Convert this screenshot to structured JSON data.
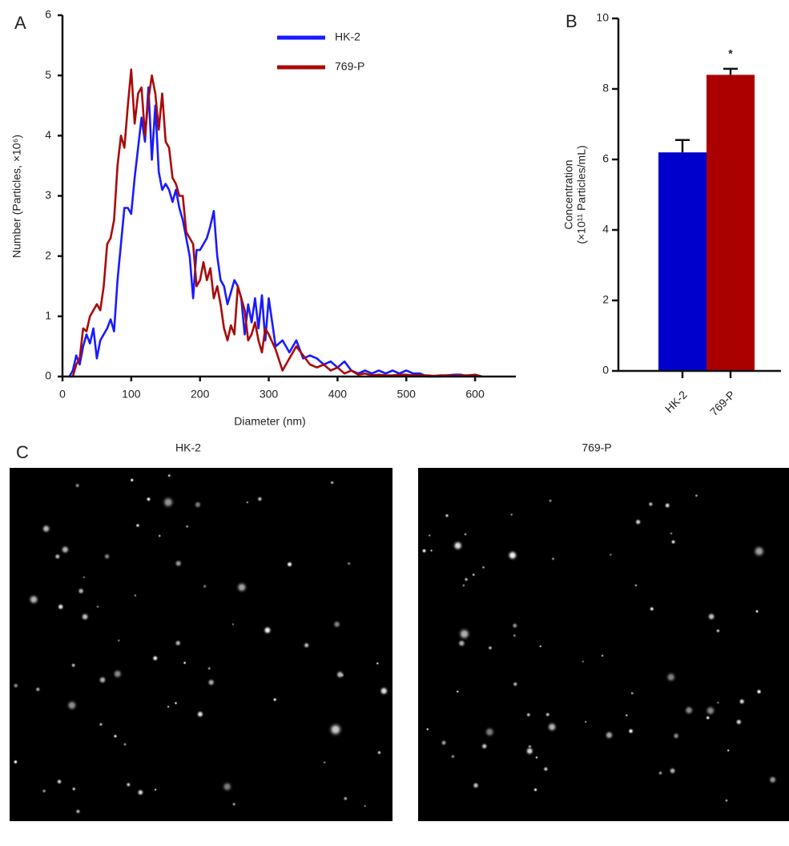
{
  "panel_labels": [
    "A",
    "B",
    "C"
  ],
  "images": [
    {
      "title": "HK-2"
    },
    {
      "title": "769-P"
    }
  ],
  "chart_data": [
    {
      "type": "line",
      "xlabel": "Diameter (nm)",
      "ylabel": "Number (Particles, ×10⁶)",
      "xlim": [
        0,
        650
      ],
      "xticks": [
        0,
        100,
        200,
        300,
        400,
        500,
        600
      ],
      "ylim": [
        0,
        6
      ],
      "yticks": [
        0,
        1,
        2,
        3,
        4,
        5,
        6
      ],
      "legend": "top",
      "x": [
        10,
        15,
        20,
        25,
        30,
        35,
        40,
        45,
        50,
        55,
        60,
        65,
        70,
        75,
        80,
        85,
        90,
        95,
        100,
        105,
        110,
        115,
        120,
        125,
        130,
        135,
        140,
        145,
        150,
        155,
        160,
        165,
        170,
        175,
        180,
        185,
        190,
        195,
        200,
        205,
        210,
        215,
        220,
        225,
        230,
        235,
        240,
        245,
        250,
        255,
        260,
        265,
        270,
        275,
        280,
        285,
        290,
        295,
        300,
        310,
        320,
        330,
        340,
        350,
        360,
        370,
        380,
        390,
        400,
        410,
        420,
        430,
        440,
        450,
        460,
        470,
        480,
        490,
        500,
        510,
        520,
        530,
        540,
        550,
        560,
        570,
        580,
        590,
        600,
        610
      ],
      "series": [
        {
          "name": "HK-2",
          "color": "#1a1aff",
          "values": [
            0,
            0.1,
            0.35,
            0.2,
            0.5,
            0.7,
            0.55,
            0.8,
            0.3,
            0.6,
            0.7,
            0.8,
            0.95,
            0.75,
            1.6,
            2.2,
            2.8,
            2.8,
            2.7,
            3.3,
            3.8,
            4.3,
            3.9,
            4.8,
            3.6,
            4.5,
            3.4,
            3.1,
            3.2,
            3.1,
            2.9,
            3.1,
            2.8,
            2.6,
            2.3,
            2.0,
            1.3,
            2.1,
            2.1,
            2.2,
            2.3,
            2.5,
            2.75,
            2.0,
            1.6,
            1.5,
            1.2,
            1.4,
            1.6,
            1.5,
            1.3,
            0.7,
            1.2,
            0.9,
            1.3,
            0.8,
            1.35,
            0.6,
            1.3,
            0.5,
            0.6,
            0.4,
            0.6,
            0.3,
            0.35,
            0.3,
            0.2,
            0.25,
            0.15,
            0.25,
            0.1,
            0.05,
            0.1,
            0.05,
            0.1,
            0.05,
            0.1,
            0.05,
            0.1,
            0.05,
            0.05,
            0,
            0,
            0,
            0.02,
            0.03,
            0.03,
            0,
            0.03,
            0
          ]
        },
        {
          "name": "769-P",
          "color": "#aa0a0a",
          "values": [
            0,
            0,
            0.2,
            0.3,
            0.8,
            0.75,
            1.0,
            1.1,
            1.2,
            1.1,
            1.5,
            2.2,
            2.3,
            2.6,
            3.5,
            4.0,
            3.8,
            4.5,
            5.1,
            4.2,
            4.7,
            4.8,
            4.0,
            4.6,
            5.0,
            4.7,
            4.1,
            4.7,
            3.9,
            3.8,
            3.3,
            3.2,
            3.0,
            3.0,
            2.4,
            2.3,
            2.2,
            1.5,
            1.6,
            1.9,
            1.6,
            1.8,
            1.3,
            1.5,
            1.2,
            0.8,
            0.6,
            0.85,
            0.7,
            1.5,
            1.3,
            1.1,
            0.6,
            0.7,
            0.9,
            0.6,
            0.4,
            0.8,
            0.7,
            0.45,
            0.1,
            0.3,
            0.5,
            0.35,
            0.2,
            0.15,
            0.2,
            0.1,
            0.15,
            0.05,
            0.1,
            0.03,
            0.05,
            0.02,
            0.03,
            0.02,
            0.02,
            0.03,
            0.03,
            0.02,
            0.02,
            0.02,
            0.01,
            0.02,
            0.02,
            0.01,
            0.02,
            0.02,
            0.03,
            0
          ]
        }
      ]
    },
    {
      "type": "bar",
      "ylabel": [
        "Concentration",
        "(×10¹¹ Particles/mL)"
      ],
      "categories": [
        "HK-2",
        "769-P"
      ],
      "values": [
        6.2,
        8.4
      ],
      "errors": [
        0.35,
        0.17
      ],
      "colors": [
        "#0000cc",
        "#aa0000"
      ],
      "annotations": [
        null,
        "*"
      ],
      "ylim": [
        0,
        10
      ],
      "yticks": [
        0,
        2,
        4,
        6,
        8,
        10
      ]
    }
  ]
}
